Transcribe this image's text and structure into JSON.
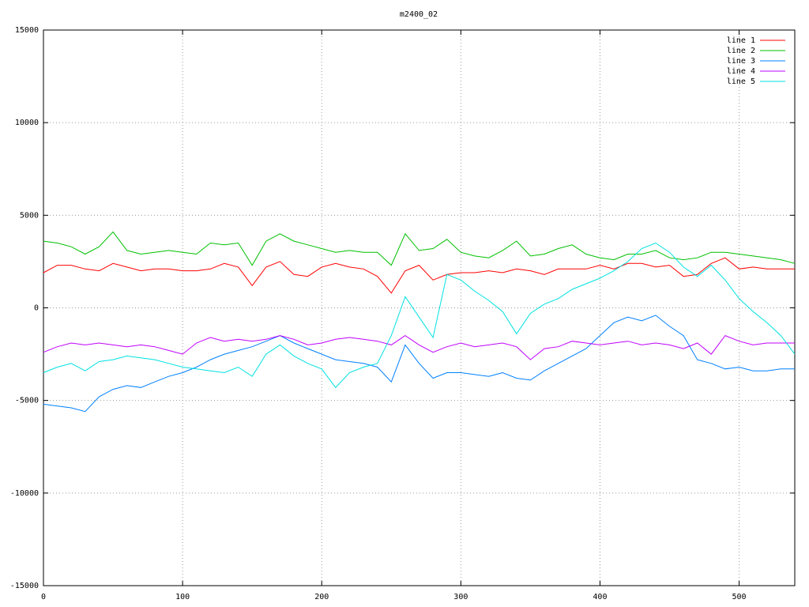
{
  "chart_data": {
    "type": "line",
    "title": "m2400_02",
    "x": [
      0,
      10,
      20,
      30,
      40,
      50,
      60,
      70,
      80,
      90,
      100,
      110,
      120,
      130,
      140,
      150,
      160,
      170,
      180,
      190,
      200,
      210,
      220,
      230,
      240,
      250,
      260,
      270,
      280,
      290,
      300,
      310,
      320,
      330,
      340,
      350,
      360,
      370,
      380,
      390,
      400,
      410,
      420,
      430,
      440,
      450,
      460,
      470,
      480,
      490,
      500,
      510,
      520,
      530,
      540
    ],
    "series": [
      {
        "name": "line 1",
        "color": "#ff0000",
        "values": [
          1900,
          2300,
          2300,
          2100,
          2000,
          2400,
          2200,
          2000,
          2100,
          2100,
          2000,
          2000,
          2100,
          2400,
          2200,
          1200,
          2200,
          2500,
          1800,
          1700,
          2200,
          2400,
          2200,
          2100,
          1700,
          800,
          2000,
          2300,
          1500,
          1800,
          1900,
          1900,
          2000,
          1900,
          2100,
          2000,
          1800,
          2100,
          2100,
          2100,
          2300,
          2100,
          2400,
          2400,
          2200,
          2300,
          1700,
          1800,
          2400,
          2700,
          2100,
          2200,
          2100,
          2100,
          2100
        ]
      },
      {
        "name": "line 2",
        "color": "#00c000",
        "values": [
          3600,
          3500,
          3300,
          2900,
          3300,
          4100,
          3100,
          2900,
          3000,
          3100,
          3000,
          2900,
          3500,
          3400,
          3500,
          2300,
          3600,
          4000,
          3600,
          3400,
          3200,
          3000,
          3100,
          3000,
          3000,
          2300,
          4000,
          3100,
          3200,
          3700,
          3000,
          2800,
          2700,
          3100,
          3600,
          2800,
          2900,
          3200,
          3400,
          2900,
          2700,
          2600,
          2900,
          2900,
          3100,
          2700,
          2600,
          2700,
          3000,
          3000,
          2900,
          2800,
          2700,
          2600,
          2400
        ]
      },
      {
        "name": "line 3",
        "color": "#0080ff",
        "values": [
          -5200,
          -5300,
          -5400,
          -5600,
          -4800,
          -4400,
          -4200,
          -4300,
          -4000,
          -3700,
          -3500,
          -3200,
          -2800,
          -2500,
          -2300,
          -2100,
          -1800,
          -1500,
          -1900,
          -2200,
          -2500,
          -2800,
          -2900,
          -3000,
          -3200,
          -4000,
          -2000,
          -3000,
          -3800,
          -3500,
          -3500,
          -3600,
          -3700,
          -3500,
          -3800,
          -3900,
          -3400,
          -3000,
          -2600,
          -2200,
          -1500,
          -800,
          -500,
          -700,
          -400,
          -1000,
          -1500,
          -2800,
          -3000,
          -3300,
          -3200,
          -3400,
          -3400,
          -3300,
          -3300
        ]
      },
      {
        "name": "line 4",
        "color": "#c000ff",
        "values": [
          -2400,
          -2100,
          -1900,
          -2000,
          -1900,
          -2000,
          -2100,
          -2000,
          -2100,
          -2300,
          -2500,
          -1900,
          -1600,
          -1800,
          -1700,
          -1800,
          -1700,
          -1500,
          -1700,
          -2000,
          -1900,
          -1700,
          -1600,
          -1700,
          -1800,
          -2000,
          -1500,
          -2000,
          -2400,
          -2100,
          -1900,
          -2100,
          -2000,
          -1900,
          -2100,
          -2800,
          -2200,
          -2100,
          -1800,
          -1900,
          -2000,
          -1900,
          -1800,
          -2000,
          -1900,
          -2000,
          -2200,
          -1900,
          -2500,
          -1500,
          -1800,
          -2000,
          -1900,
          -1900,
          -1900
        ]
      },
      {
        "name": "line 5",
        "color": "#00e0e0",
        "values": [
          -3500,
          -3200,
          -3000,
          -3400,
          -2900,
          -2800,
          -2600,
          -2700,
          -2800,
          -3000,
          -3200,
          -3300,
          -3400,
          -3500,
          -3200,
          -3700,
          -2500,
          -2000,
          -2600,
          -3000,
          -3300,
          -4300,
          -3500,
          -3200,
          -3000,
          -1500,
          600,
          -500,
          -1600,
          1800,
          1500,
          900,
          400,
          -200,
          -1400,
          -300,
          200,
          500,
          1000,
          1300,
          1600,
          2000,
          2500,
          3200,
          3500,
          3000,
          2200,
          1700,
          2300,
          1500,
          500,
          -200,
          -800,
          -1500,
          -2500
        ]
      }
    ],
    "xlim": [
      0,
      540
    ],
    "xticks": [
      0,
      100,
      200,
      300,
      400,
      500
    ],
    "ylim": [
      -15000,
      15000
    ],
    "yticks": [
      -15000,
      -10000,
      -5000,
      0,
      5000,
      10000,
      15000
    ],
    "grid": true,
    "legend": "top-right"
  }
}
